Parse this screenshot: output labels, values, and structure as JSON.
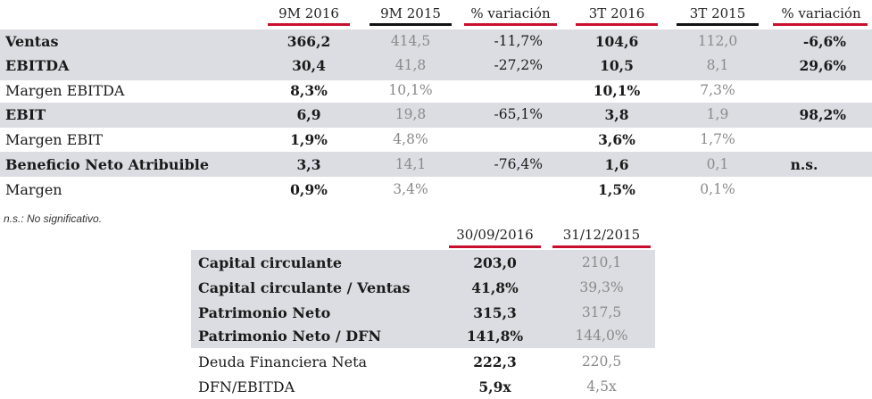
{
  "table1": {
    "headers": [
      "9M 2016",
      "9M 2015",
      "% variación",
      "3T 2016",
      "3T 2015",
      "% variación"
    ],
    "rows": [
      {
        "label": "Ventas",
        "values": [
          "366,2",
          "414,5",
          "-11,7%",
          "104,6",
          "112,0",
          "-6,6%"
        ]
      },
      {
        "label": "EBITDA",
        "values": [
          "30,4",
          "41,8",
          "-27,2%",
          "10,5",
          "8,1",
          "29,6%"
        ]
      },
      {
        "label": "Margen EBITDA",
        "values": [
          "8,3%",
          "10,1%",
          "",
          "10,1%",
          "7,3%",
          ""
        ]
      },
      {
        "label": "EBIT",
        "values": [
          "6,9",
          "19,8",
          "-65,1%",
          "3,8",
          "1,9",
          "98,2%"
        ]
      },
      {
        "label": "Margen EBIT",
        "values": [
          "1,9%",
          "4,8%",
          "",
          "3,6%",
          "1,7%",
          ""
        ]
      },
      {
        "label": "Beneficio Neto Atribuible",
        "values": [
          "3,3",
          "14,1",
          "-76,4%",
          "1,6",
          "0,1",
          "n.s."
        ]
      },
      {
        "label": "Margen",
        "values": [
          "0,9%",
          "3,4%",
          "",
          "1,5%",
          "0,1%",
          ""
        ]
      }
    ]
  },
  "note": "n.s.: No significativo.",
  "table2": {
    "headers": [
      "30/09/2016",
      "31/12/2015"
    ],
    "rows": [
      {
        "label": "Capital circulante",
        "values": [
          "203,0",
          "210,1"
        ]
      },
      {
        "label": "Capital circulante / Ventas",
        "values": [
          "41,8%",
          "39,3%"
        ]
      },
      {
        "label": "Patrimonio Neto",
        "values": [
          "315,3",
          "317,5"
        ]
      },
      {
        "label": "Patrimonio Neto / DFN",
        "values": [
          "141,8%",
          "144,0%"
        ]
      },
      {
        "label": "Deuda Financiera Neta",
        "values": [
          "222,3",
          "220,5"
        ]
      },
      {
        "label": "DFN/EBITDA",
        "values": [
          "5,9x",
          "4,5x"
        ]
      }
    ]
  },
  "colors": {
    "accent_red": "#c8102e",
    "rule_black": "#111111",
    "row_shade": "#dcdde2",
    "muted_grey": "#8a8a8a"
  }
}
